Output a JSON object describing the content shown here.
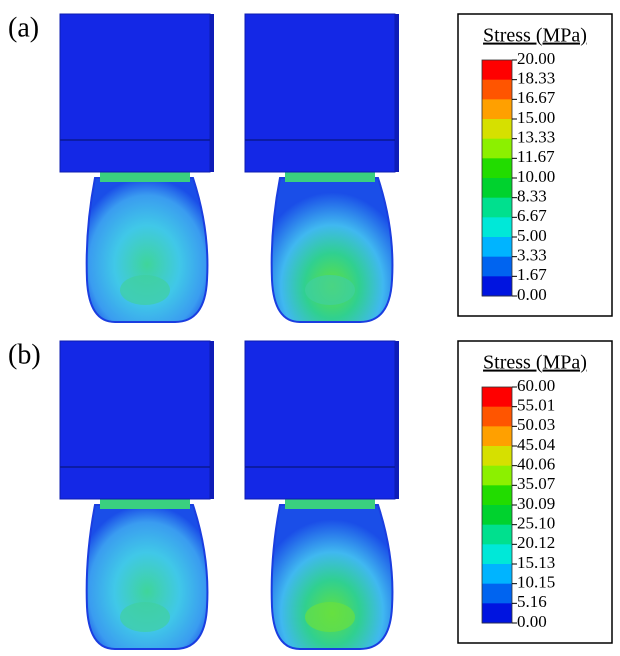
{
  "panels": [
    {
      "label": "(a)",
      "legend": {
        "title": "Stress (MPa)",
        "ticks": [
          "20.00",
          "18.33",
          "16.67",
          "15.00",
          "13.33",
          "11.67",
          "10.00",
          "8.33",
          "6.67",
          "5.00",
          "3.33",
          "1.67",
          "0.00"
        ],
        "colors": [
          "#ff0000",
          "#ff5500",
          "#ffa000",
          "#d6e000",
          "#8cf000",
          "#22dc00",
          "#00d22e",
          "#00e08e",
          "#00e8d8",
          "#00b4ff",
          "#0064f0",
          "#0014e0"
        ]
      }
    },
    {
      "label": "(b)",
      "legend": {
        "title": "Stress (MPa)",
        "ticks": [
          "60.00",
          "55.01",
          "50.03",
          "45.04",
          "40.06",
          "35.07",
          "30.09",
          "25.10",
          "20.12",
          "15.13",
          "10.15",
          "5.16",
          "0.00"
        ],
        "colors": [
          "#ff0000",
          "#ff5500",
          "#ffa000",
          "#d6e000",
          "#8cf000",
          "#22dc00",
          "#00d22e",
          "#00e08e",
          "#00e8d8",
          "#00b4ff",
          "#0064f0",
          "#0014e0"
        ]
      }
    }
  ]
}
